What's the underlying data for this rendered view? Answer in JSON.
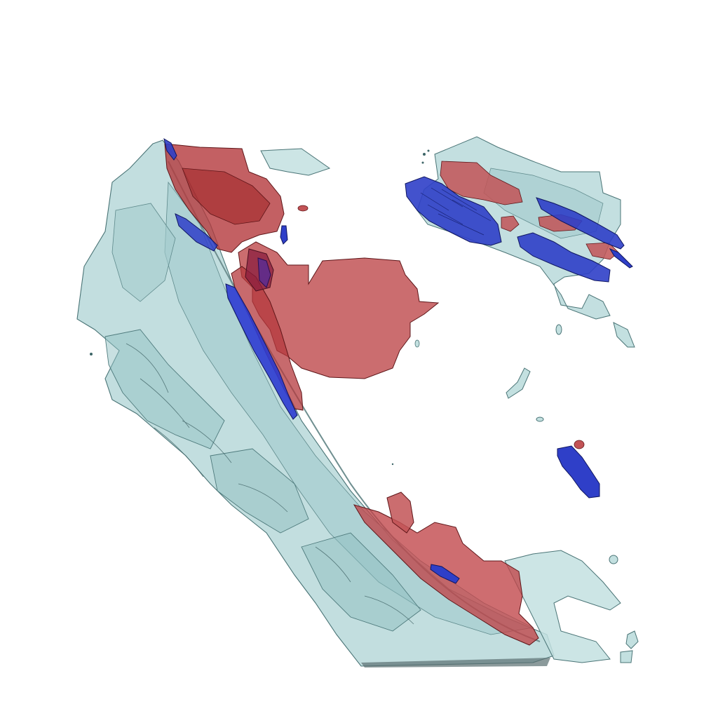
{
  "scene": {
    "kind": "3d-isosurface-render",
    "background_color": "#ffffff",
    "surfaces": [
      {
        "name": "background-shell",
        "color": "#a9cfd0",
        "edge_color": "#3d6567"
      },
      {
        "name": "positive-field",
        "color": "#c25356",
        "edge_color": "#6a1f22"
      },
      {
        "name": "negative-field",
        "color": "#2f3fc8",
        "edge_color": "#0f1660"
      }
    ]
  }
}
